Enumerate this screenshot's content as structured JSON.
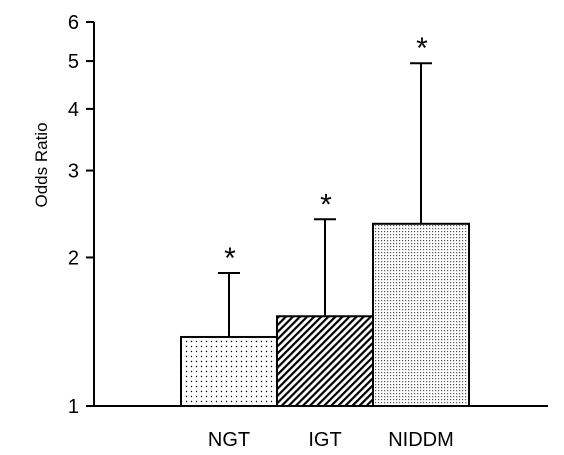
{
  "chart_data": {
    "type": "bar",
    "categories": [
      "NGT",
      "IGT",
      "NIDDM"
    ],
    "values": [
      1.38,
      1.52,
      2.34
    ],
    "error_upper": [
      1.86,
      2.39,
      4.95
    ],
    "annotations": [
      "*",
      "*",
      "*"
    ],
    "title": "",
    "xlabel": "",
    "ylabel": "Odds Ratio",
    "yscale": "log",
    "ylim": [
      1,
      6
    ],
    "yticks": [
      1,
      2,
      3,
      4,
      5,
      6
    ],
    "ytick_labels": [
      "1",
      "2",
      "3",
      "4",
      "5",
      "6"
    ],
    "grid": false,
    "legend": "none",
    "bar_patterns": [
      "sparse-dots",
      "diagonal-hatch",
      "dense-dots"
    ]
  }
}
